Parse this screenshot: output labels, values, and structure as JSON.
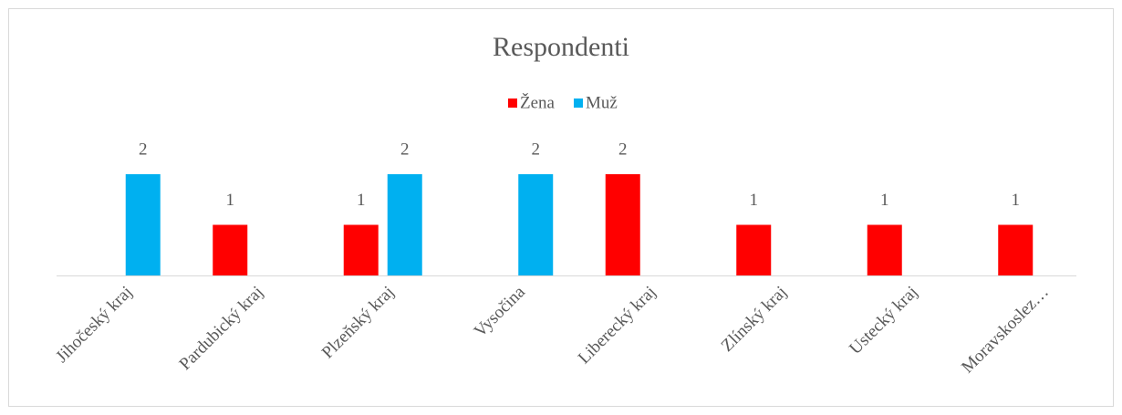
{
  "chart_data": {
    "type": "bar",
    "title": "Respondenti",
    "categories": [
      "Jihočeský kraj",
      "Pardubický kraj",
      "Plzeňský kraj",
      "Vysočina",
      "Liberecký kraj",
      "Zlínský kraj",
      "Ustecký kraj",
      "Moravskoslez…"
    ],
    "series": [
      {
        "name": "Žena",
        "color": "#ff0000",
        "values": [
          null,
          1,
          1,
          null,
          2,
          1,
          1,
          1
        ]
      },
      {
        "name": "Muž",
        "color": "#00b0f0",
        "values": [
          2,
          null,
          2,
          2,
          null,
          null,
          null,
          null
        ]
      }
    ],
    "ylim": [
      0,
      2
    ],
    "legend": "top"
  }
}
